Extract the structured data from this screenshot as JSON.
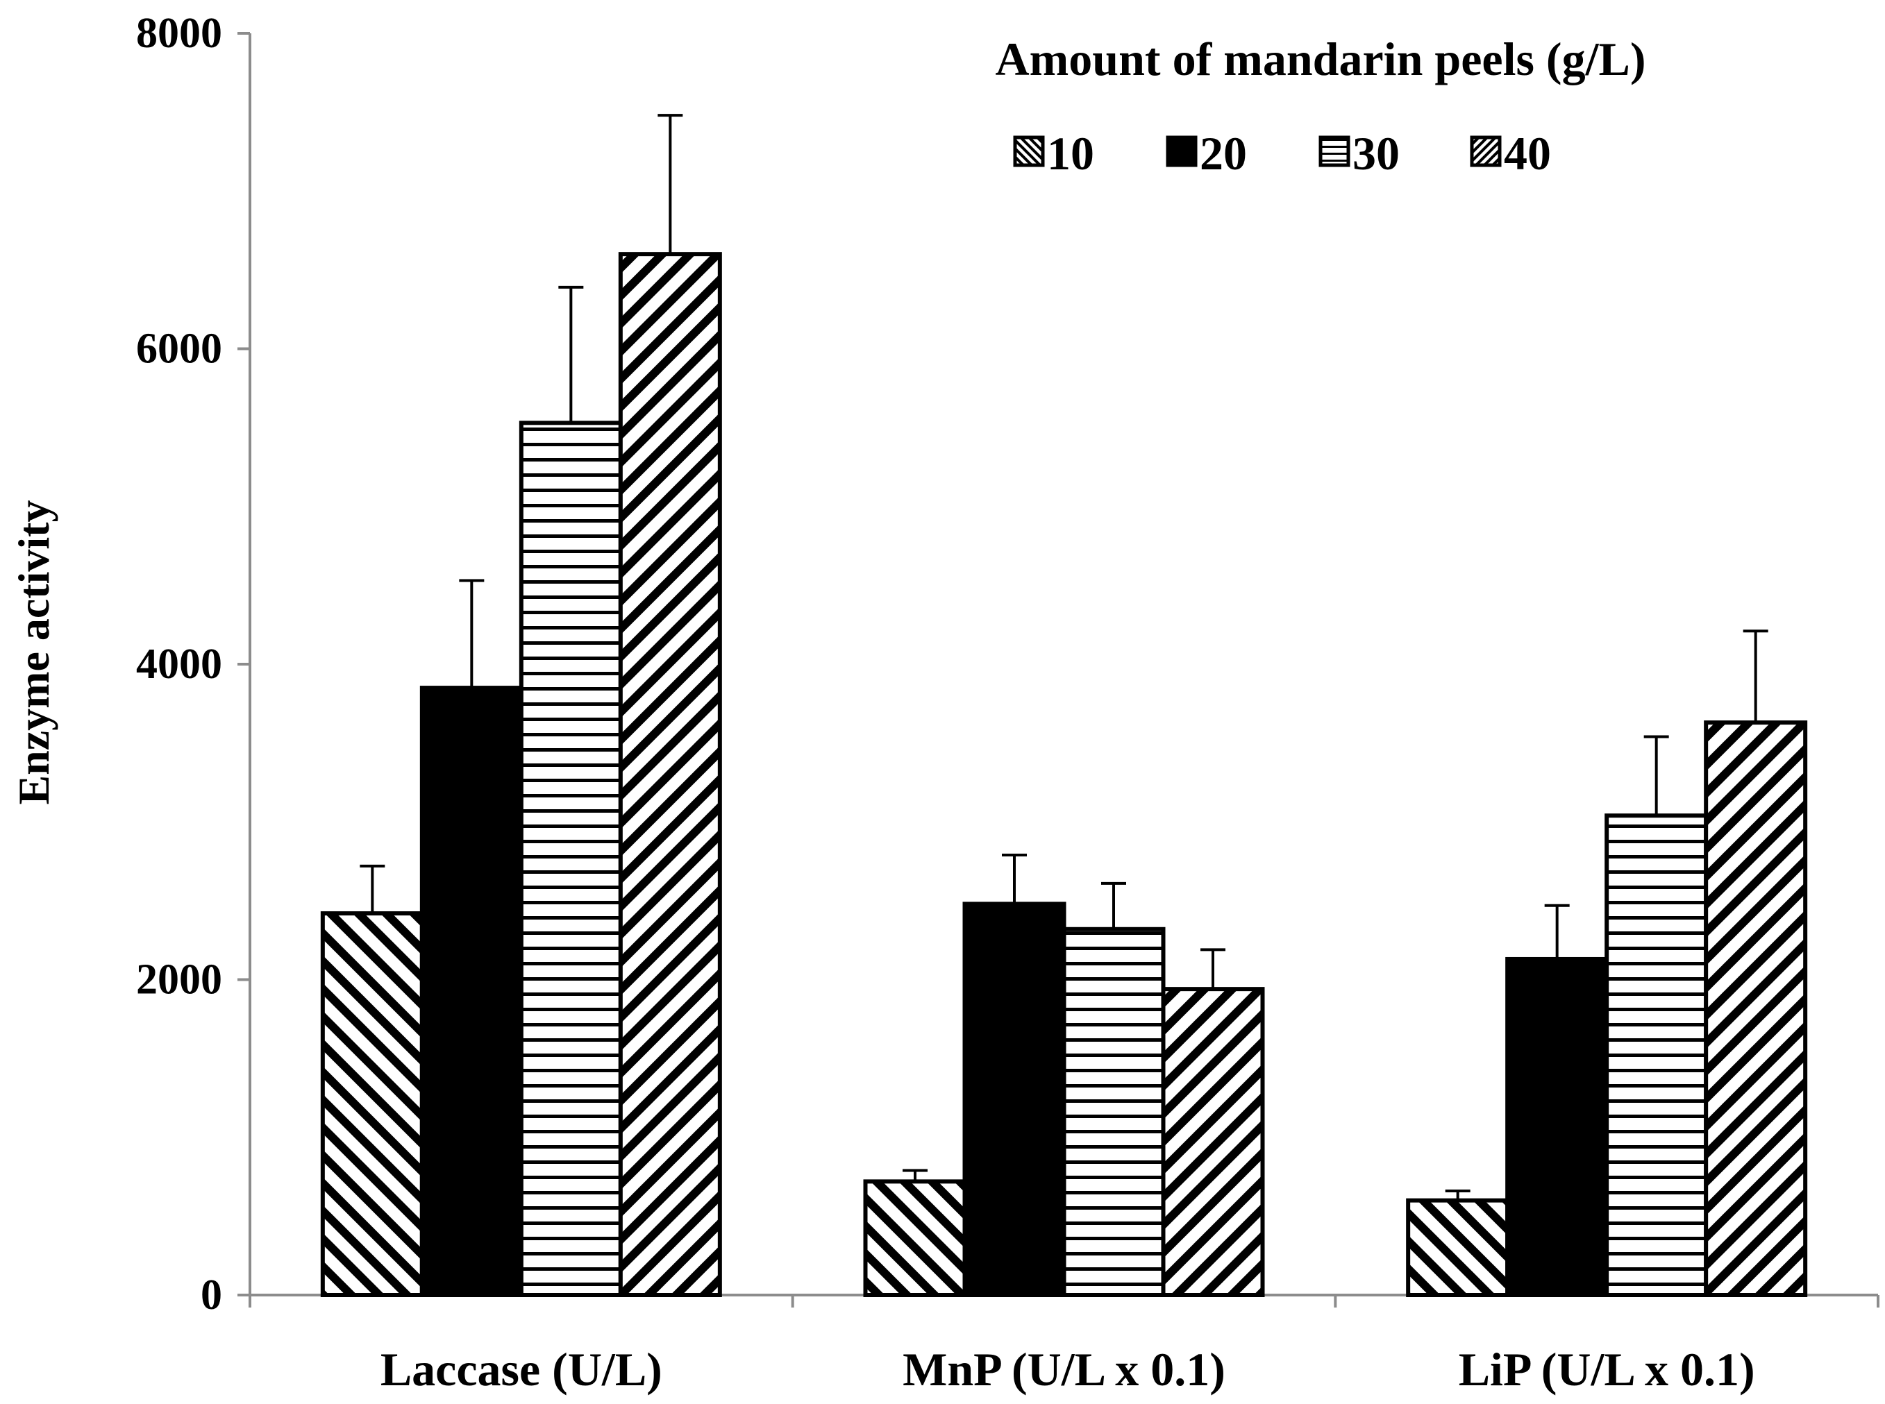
{
  "chart_data": {
    "type": "bar",
    "categories": [
      "Laccase (U/L)",
      "MnP (U/L x 0.1)",
      "LiP (U/L x 0.1)"
    ],
    "series": [
      {
        "name": "10",
        "pattern": "diag-down",
        "values": [
          2420,
          720,
          600
        ],
        "errors": [
          300,
          70,
          60
        ]
      },
      {
        "name": "20",
        "pattern": "solid",
        "values": [
          3850,
          2480,
          2130
        ],
        "errors": [
          680,
          310,
          340
        ]
      },
      {
        "name": "30",
        "pattern": "horizontal",
        "values": [
          5530,
          2320,
          3040
        ],
        "errors": [
          860,
          290,
          500
        ]
      },
      {
        "name": "40",
        "pattern": "diag-up",
        "values": [
          6600,
          1940,
          3630
        ],
        "errors": [
          880,
          250,
          580
        ]
      }
    ],
    "legend_title": "Amount of mandarin peels (g/L)",
    "ylabel": "Enzyme activity",
    "xlabel": "",
    "ylim": [
      0,
      8000
    ],
    "yticks": [
      0,
      2000,
      4000,
      6000,
      8000
    ],
    "grid": false,
    "legend_position": "top-right"
  }
}
